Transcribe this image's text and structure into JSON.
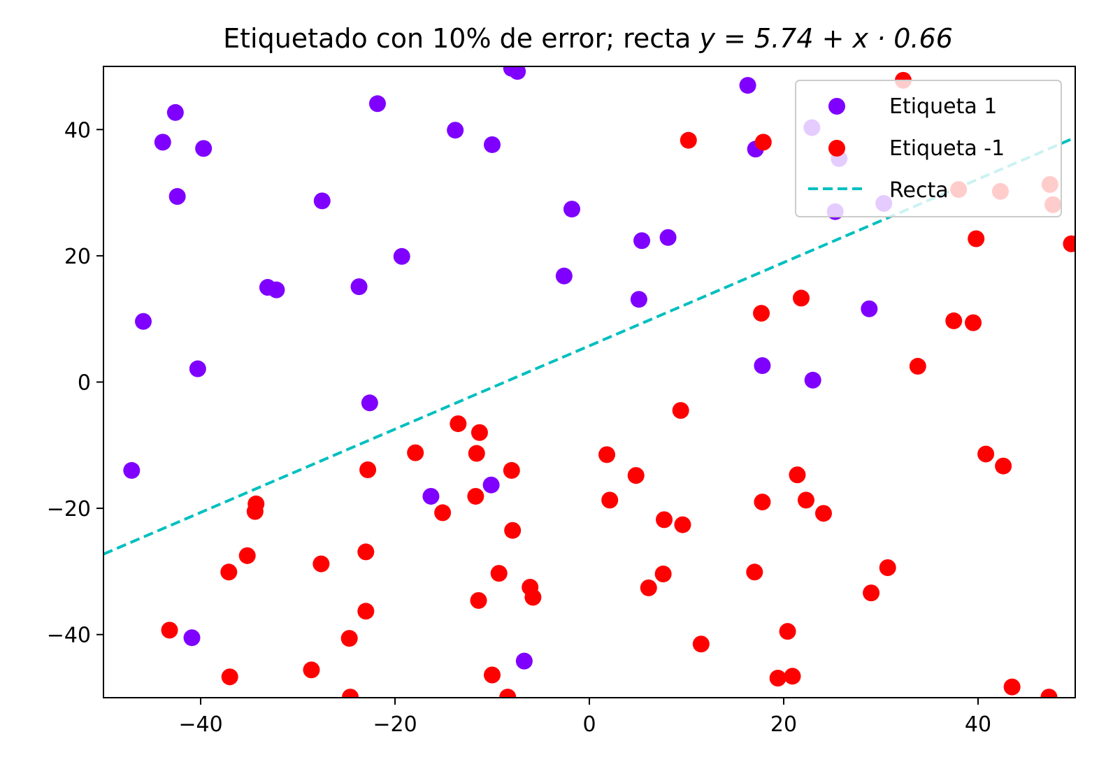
{
  "chart_data": {
    "type": "scatter",
    "title_prefix": "Etiquetado con 10% de error; recta ",
    "title_math": "y = 5.74 + x · 0.66",
    "xlabel": "",
    "ylabel": "",
    "xlim": [
      -50,
      50
    ],
    "ylim": [
      -50,
      50
    ],
    "xticks": [
      -40,
      -20,
      0,
      20,
      40
    ],
    "yticks": [
      -40,
      -20,
      0,
      20,
      40
    ],
    "xtick_labels": [
      "−40",
      "−20",
      "0",
      "20",
      "40"
    ],
    "ytick_labels": [
      "−40",
      "−20",
      "0",
      "20",
      "40"
    ],
    "grid": false,
    "legend_position": "top-right",
    "line": {
      "name": "Recta",
      "intercept": 5.74,
      "slope": 0.66,
      "color": "#00bfbf",
      "style": "dashed"
    },
    "series": [
      {
        "name": "Etiqueta 1",
        "color": "#7f00ff",
        "points": [
          [
            -43.9,
            38.0
          ],
          [
            -42.6,
            42.7
          ],
          [
            -42.4,
            29.4
          ],
          [
            -39.7,
            37.0
          ],
          [
            -45.9,
            9.6
          ],
          [
            -40.3,
            2.1
          ],
          [
            -47.1,
            -14.0
          ],
          [
            -40.9,
            -40.5
          ],
          [
            -27.5,
            28.7
          ],
          [
            -21.8,
            44.1
          ],
          [
            -33.1,
            15.0
          ],
          [
            -32.2,
            14.6
          ],
          [
            -23.7,
            15.1
          ],
          [
            -19.3,
            19.9
          ],
          [
            -22.6,
            -3.3
          ],
          [
            -13.8,
            39.9
          ],
          [
            -10.0,
            37.6
          ],
          [
            -8.0,
            49.7
          ],
          [
            -7.4,
            49.2
          ],
          [
            -16.3,
            -18.1
          ],
          [
            -10.1,
            -16.3
          ],
          [
            -6.7,
            -44.2
          ],
          [
            -1.8,
            27.4
          ],
          [
            -2.6,
            16.8
          ],
          [
            5.4,
            22.4
          ],
          [
            8.1,
            22.9
          ],
          [
            5.1,
            13.1
          ],
          [
            16.3,
            47.0
          ],
          [
            17.1,
            36.9
          ],
          [
            22.9,
            40.3
          ],
          [
            25.7,
            35.4
          ],
          [
            25.3,
            27.0
          ],
          [
            30.3,
            28.3
          ],
          [
            28.8,
            11.6
          ],
          [
            17.8,
            2.6
          ],
          [
            23.0,
            0.3
          ]
        ]
      },
      {
        "name": "Etiqueta -1",
        "color": "#ff0000",
        "points": [
          [
            10.2,
            38.3
          ],
          [
            17.9,
            38.0
          ],
          [
            32.3,
            47.8
          ],
          [
            38.0,
            30.5
          ],
          [
            42.3,
            30.2
          ],
          [
            47.4,
            31.3
          ],
          [
            47.7,
            28.1
          ],
          [
            39.8,
            22.7
          ],
          [
            49.6,
            21.9
          ],
          [
            21.8,
            13.3
          ],
          [
            17.7,
            10.9
          ],
          [
            37.5,
            9.7
          ],
          [
            39.5,
            9.4
          ],
          [
            33.8,
            2.5
          ],
          [
            9.4,
            -4.5
          ],
          [
            -13.5,
            -6.6
          ],
          [
            -11.3,
            -8.0
          ],
          [
            -17.9,
            -11.2
          ],
          [
            -11.6,
            -11.3
          ],
          [
            1.8,
            -11.5
          ],
          [
            40.8,
            -11.4
          ],
          [
            42.6,
            -13.3
          ],
          [
            -22.8,
            -13.9
          ],
          [
            -8.0,
            -14.0
          ],
          [
            4.8,
            -14.8
          ],
          [
            21.4,
            -14.7
          ],
          [
            -11.7,
            -18.1
          ],
          [
            2.1,
            -18.7
          ],
          [
            17.8,
            -19.0
          ],
          [
            22.3,
            -18.7
          ],
          [
            -34.3,
            -19.3
          ],
          [
            -34.4,
            -20.5
          ],
          [
            -15.1,
            -20.7
          ],
          [
            24.1,
            -20.8
          ],
          [
            7.7,
            -21.8
          ],
          [
            9.6,
            -22.6
          ],
          [
            -7.9,
            -23.5
          ],
          [
            -35.2,
            -27.5
          ],
          [
            -23.0,
            -26.9
          ],
          [
            -27.6,
            -28.8
          ],
          [
            -37.1,
            -30.1
          ],
          [
            -9.3,
            -30.3
          ],
          [
            7.6,
            -30.4
          ],
          [
            17.0,
            -30.1
          ],
          [
            30.7,
            -29.4
          ],
          [
            -6.1,
            -32.5
          ],
          [
            6.1,
            -32.6
          ],
          [
            29.0,
            -33.4
          ],
          [
            -5.8,
            -34.1
          ],
          [
            -11.4,
            -34.6
          ],
          [
            -23.0,
            -36.3
          ],
          [
            -43.2,
            -39.3
          ],
          [
            -24.7,
            -40.6
          ],
          [
            11.5,
            -41.5
          ],
          [
            20.4,
            -39.5
          ],
          [
            -28.6,
            -45.6
          ],
          [
            -37.0,
            -46.7
          ],
          [
            -10.0,
            -46.4
          ],
          [
            19.4,
            -46.9
          ],
          [
            20.9,
            -46.6
          ],
          [
            43.5,
            -48.3
          ],
          [
            -24.6,
            -49.9
          ],
          [
            -8.4,
            -49.9
          ],
          [
            47.3,
            -49.9
          ]
        ]
      }
    ]
  }
}
